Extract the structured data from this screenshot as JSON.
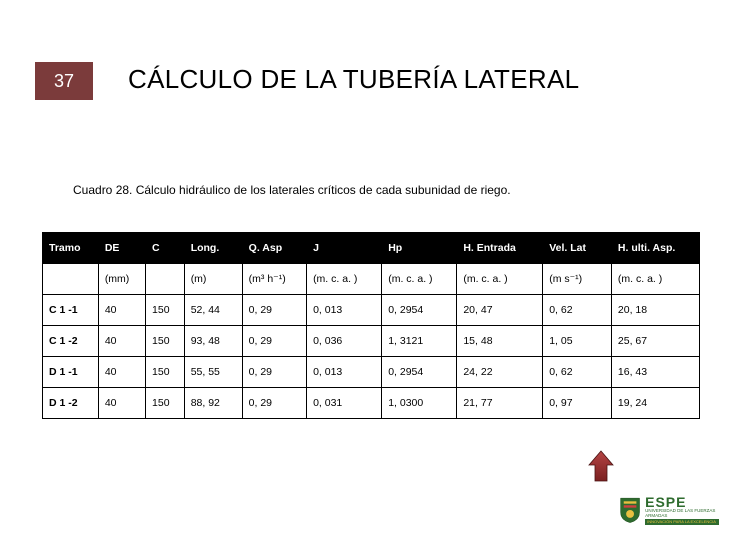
{
  "slide": {
    "number": "37",
    "title": "CÁLCULO DE LA TUBERÍA LATERAL",
    "caption": "Cuadro 28.  Cálculo hidráulico de los laterales críticos de cada subunidad de riego.",
    "slide_number_bg": "#7b3b3b",
    "slide_number_fg": "#ffffff"
  },
  "table": {
    "header_bg": "#000000",
    "header_fg": "#ffffff",
    "border_color": "#000000",
    "columns": [
      "Tramo",
      "DE",
      "C",
      "Long.",
      "Q. Asp",
      "J",
      "Hp",
      "H. Entrada",
      "Vel. Lat",
      "H. ulti. Asp."
    ],
    "units": [
      "",
      "(mm)",
      "",
      "(m)",
      "(m³ h⁻¹)",
      "(m. c. a. )",
      "(m. c. a. )",
      "(m. c. a. )",
      "(m s⁻¹)",
      "(m. c. a. )"
    ],
    "rows": [
      [
        "C 1 -1",
        "40",
        "150",
        "52, 44",
        "0, 29",
        "0, 013",
        "0, 2954",
        "20, 47",
        "0, 62",
        "20, 18"
      ],
      [
        "C 1 -2",
        "40",
        "150",
        "93, 48",
        "0, 29",
        "0, 036",
        "1, 3121",
        "15, 48",
        "1, 05",
        "25, 67"
      ],
      [
        "D 1 -1",
        "40",
        "150",
        "55, 55",
        "0, 29",
        "0, 013",
        "0, 2954",
        "24, 22",
        "0, 62",
        "16, 43"
      ],
      [
        "D 1 -2",
        "40",
        "150",
        "88, 92",
        "0, 29",
        "0, 031",
        "1, 0300",
        "21, 77",
        "0, 97",
        "19, 24"
      ]
    ],
    "col_widths": [
      "52px",
      "44px",
      "36px",
      "54px",
      "60px",
      "70px",
      "70px",
      "80px",
      "64px",
      "82px"
    ]
  },
  "arrow": {
    "fill": "#8b2b2b",
    "stroke": "#5a1a1a"
  },
  "logo": {
    "name": "ESPE",
    "sub": "UNIVERSIDAD DE LAS FUERZAS ARMADAS",
    "banner": "INNOVACIÓN PARA LA EXCELENCIA",
    "shield_bg": "#2e6b2e",
    "shield_accent": "#e8c040"
  }
}
